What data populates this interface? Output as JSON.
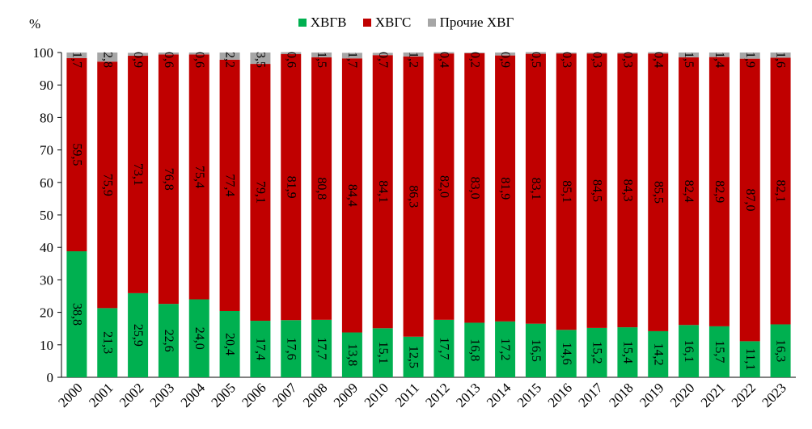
{
  "chart_data": {
    "type": "bar",
    "stacked": true,
    "ylabel": "%",
    "ylim": [
      0,
      100
    ],
    "yticks": [
      0,
      10,
      20,
      30,
      40,
      50,
      60,
      70,
      80,
      90,
      100
    ],
    "grid": false,
    "legend_position": "top",
    "categories": [
      "2000",
      "2001",
      "2002",
      "2003",
      "2004",
      "2005",
      "2006",
      "2007",
      "2008",
      "2009",
      "2010",
      "2011",
      "2012",
      "2013",
      "2014",
      "2015",
      "2016",
      "2017",
      "2018",
      "2019",
      "2020",
      "2021",
      "2022",
      "2023"
    ],
    "series": [
      {
        "name": "ХВГВ",
        "color": "#00b050",
        "values": [
          38.8,
          21.3,
          25.9,
          22.6,
          24.0,
          20.4,
          17.4,
          17.6,
          17.7,
          13.8,
          15.1,
          12.5,
          17.7,
          16.8,
          17.2,
          16.5,
          14.6,
          15.2,
          15.4,
          14.2,
          16.1,
          15.7,
          11.1,
          16.3
        ],
        "labels": [
          "38,8",
          "21,3",
          "25,9",
          "22,6",
          "24,0",
          "20,4",
          "17,4",
          "17,6",
          "17,7",
          "13,8",
          "15,1",
          "12,5",
          "17,7",
          "16,8",
          "17,2",
          "16,5",
          "14,6",
          "15,2",
          "15,4",
          "14,2",
          "16,1",
          "15,7",
          "11,1",
          "16,3"
        ]
      },
      {
        "name": "ХВГС",
        "color": "#c00000",
        "values": [
          59.5,
          75.9,
          73.1,
          76.8,
          75.4,
          77.4,
          79.1,
          81.9,
          80.8,
          84.4,
          84.1,
          86.3,
          82.0,
          83.0,
          81.9,
          83.1,
          85.1,
          84.5,
          84.3,
          85.5,
          82.4,
          82.9,
          87.0,
          82.1
        ],
        "labels": [
          "59,5",
          "75,9",
          "73,1",
          "76,8",
          "75,4",
          "77,4",
          "79,1",
          "81,9",
          "80,8",
          "84,4",
          "84,1",
          "86,3",
          "82,0",
          "83,0",
          "81,9",
          "83,1",
          "85,1",
          "84,5",
          "84,3",
          "85,5",
          "82,4",
          "82,9",
          "87,0",
          "82,1"
        ]
      },
      {
        "name": "Прочие ХВГ",
        "color": "#a6a6a6",
        "values": [
          1.7,
          2.8,
          0.9,
          0.6,
          0.6,
          2.2,
          3.5,
          0.6,
          1.5,
          1.7,
          0.7,
          1.2,
          0.4,
          0.2,
          0.9,
          0.5,
          0.3,
          0.3,
          0.3,
          0.4,
          1.5,
          1.4,
          1.9,
          1.6
        ],
        "labels": [
          "1,7",
          "2,8",
          "0,9",
          "0,6",
          "0,6",
          "2,2",
          "3,5",
          "0,6",
          "1,5",
          "1,7",
          "0,7",
          "1,2",
          "0,4",
          "0,2",
          "0,9",
          "0,5",
          "0,3",
          "0,3",
          "0,3",
          "0,4",
          "1,5",
          "1,4",
          "1,9",
          "1,6"
        ]
      }
    ]
  }
}
